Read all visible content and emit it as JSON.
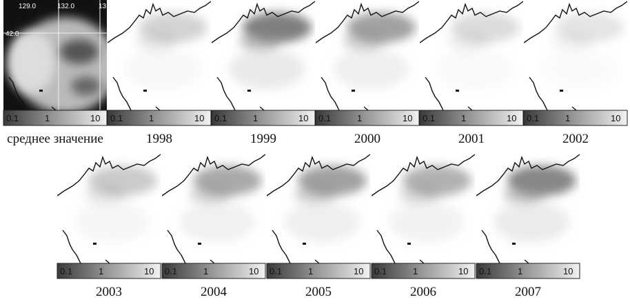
{
  "panels": [
    {
      "label": "среднее значение",
      "colorbar": [
        "0.1",
        "1",
        "10"
      ]
    },
    {
      "label": "1998",
      "colorbar": [
        "0.1",
        "1",
        "10"
      ]
    },
    {
      "label": "1999",
      "colorbar": [
        "0.1",
        "1",
        "10"
      ]
    },
    {
      "label": "2000",
      "colorbar": [
        "0.1",
        "1",
        "10"
      ]
    },
    {
      "label": "2001",
      "colorbar": [
        "0.1",
        "1",
        "10"
      ]
    },
    {
      "label": "2002",
      "colorbar": [
        "0.1",
        "1",
        "10"
      ]
    },
    {
      "label": "2003",
      "colorbar": [
        "0.1",
        "1",
        "10"
      ]
    },
    {
      "label": "2004",
      "colorbar": [
        "0.1",
        "1",
        "10"
      ]
    },
    {
      "label": "2005",
      "colorbar": [
        "0.1",
        "1",
        "10"
      ]
    },
    {
      "label": "2006",
      "colorbar": [
        "0.1",
        "1",
        "10"
      ]
    },
    {
      "label": "2007",
      "colorbar": [
        "0.1",
        "1",
        "10"
      ]
    }
  ],
  "map_axis": {
    "lon": [
      "129.0",
      "132.0",
      "13"
    ],
    "lat": [
      "42.0"
    ]
  }
}
